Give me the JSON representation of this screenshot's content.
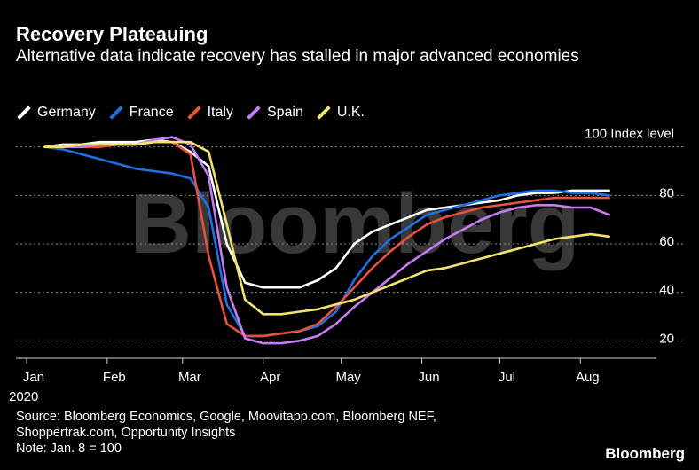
{
  "header": {
    "title": "Recovery Plateauing",
    "subtitle": "Alternative data indicate recovery has stalled in major advanced economies"
  },
  "footer": {
    "source_lines": [
      "Source: Bloomberg Economics, Google, Moovitapp.com, Bloomberg NEF,",
      "Shoppertrak.com, Opportunity Insights",
      "Note: Jan. 8 = 100"
    ],
    "logo": "Bloomberg"
  },
  "watermark": "Bloomberg",
  "chart_data": {
    "type": "line",
    "title": "Recovery Plateauing",
    "subtitle": "Alternative data indicate recovery has stalled in major advanced economies",
    "xlabel": "",
    "ylabel": "",
    "y_unit_label": "100 Index level",
    "x_ticks": [
      "Jan\n2020",
      "Feb",
      "Mar",
      "Apr",
      "May",
      "Jun",
      "Jul",
      "Aug"
    ],
    "y_ticks": [
      20,
      40,
      60,
      80,
      100
    ],
    "ylim": [
      15,
      105
    ],
    "grid": true,
    "legend_position": "top-left",
    "x": [
      "2020-01-08",
      "2020-01-15",
      "2020-01-22",
      "2020-01-29",
      "2020-02-05",
      "2020-02-12",
      "2020-02-19",
      "2020-02-26",
      "2020-03-04",
      "2020-03-11",
      "2020-03-18",
      "2020-03-25",
      "2020-04-01",
      "2020-04-08",
      "2020-04-15",
      "2020-04-22",
      "2020-04-29",
      "2020-05-06",
      "2020-05-13",
      "2020-05-20",
      "2020-05-27",
      "2020-06-03",
      "2020-06-10",
      "2020-06-17",
      "2020-06-24",
      "2020-07-01",
      "2020-07-08",
      "2020-07-15",
      "2020-07-22",
      "2020-07-29",
      "2020-08-05",
      "2020-08-12"
    ],
    "series": [
      {
        "name": "Germany",
        "color": "#ffffff",
        "values": [
          100,
          101,
          101,
          102,
          102,
          102,
          103,
          102,
          98,
          92,
          60,
          44,
          42,
          42,
          42,
          45,
          50,
          60,
          65,
          68,
          71,
          74,
          75,
          76,
          77,
          78,
          80,
          81,
          81,
          82,
          82,
          82
        ]
      },
      {
        "name": "France",
        "color": "#1f6fe5",
        "values": [
          100,
          99,
          97,
          95,
          93,
          91,
          90,
          89,
          87,
          75,
          35,
          22,
          22,
          23,
          24,
          26,
          32,
          45,
          55,
          62,
          67,
          72,
          74,
          76,
          78,
          80,
          81,
          82,
          82,
          81,
          81,
          80
        ]
      },
      {
        "name": "Italy",
        "color": "#e8523a",
        "values": [
          100,
          100,
          100,
          100,
          101,
          101,
          102,
          102,
          97,
          55,
          27,
          22,
          22,
          23,
          24,
          27,
          34,
          42,
          50,
          57,
          63,
          68,
          71,
          73,
          75,
          76,
          77,
          78,
          79,
          79,
          79,
          79
        ]
      },
      {
        "name": "Spain",
        "color": "#c57cf5",
        "values": [
          100,
          100,
          100,
          101,
          101,
          101,
          103,
          104,
          101,
          88,
          42,
          21,
          19,
          19,
          20,
          22,
          27,
          34,
          40,
          46,
          52,
          57,
          62,
          66,
          70,
          73,
          75,
          76,
          76,
          75,
          75,
          72
        ]
      },
      {
        "name": "U.K.",
        "color": "#f4e36c",
        "values": [
          100,
          100,
          101,
          101,
          101,
          101,
          102,
          102,
          102,
          98,
          68,
          37,
          31,
          31,
          32,
          33,
          35,
          37,
          40,
          43,
          46,
          49,
          50,
          52,
          54,
          56,
          58,
          60,
          62,
          63,
          64,
          63
        ]
      }
    ]
  }
}
